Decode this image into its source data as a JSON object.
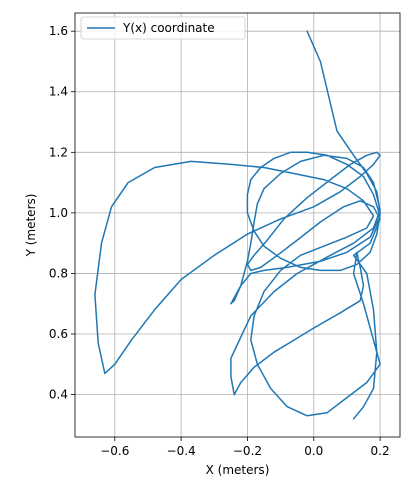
{
  "chart_data": {
    "type": "line",
    "xlabel": "X (meters)",
    "ylabel": "Y (meters)",
    "xlim": [
      -0.72,
      0.26
    ],
    "ylim": [
      0.26,
      1.66
    ],
    "grid": true,
    "legend_position": "top-left",
    "xticks": [
      -0.6,
      -0.4,
      -0.2,
      0.0,
      0.2
    ],
    "xtick_labels": [
      "−0.6",
      "−0.4",
      "−0.2",
      "0.0",
      "0.2"
    ],
    "yticks": [
      0.4,
      0.6,
      0.8,
      1.0,
      1.2,
      1.4,
      1.6
    ],
    "ytick_labels": [
      "0.4",
      "0.6",
      "0.8",
      "1.0",
      "1.2",
      "1.4",
      "1.6"
    ],
    "colors": {
      "line": "#1f77b4",
      "grid": "#b0b0b0"
    },
    "series": [
      {
        "name": "Y(x) coordinate",
        "x": [
          -0.02,
          0.02,
          0.07,
          0.12,
          0.16,
          0.19,
          0.2,
          0.19,
          0.17,
          0.13,
          0.08,
          0.02,
          -0.04,
          -0.1,
          -0.15,
          -0.18,
          -0.2,
          -0.2,
          -0.19,
          -0.16,
          -0.12,
          -0.07,
          -0.02,
          0.04,
          0.1,
          0.15,
          0.18,
          0.2,
          0.17,
          0.1,
          0.02,
          -0.08,
          -0.15,
          -0.19,
          -0.22,
          -0.25,
          -0.24,
          -0.22,
          -0.2,
          -0.19,
          -0.18,
          -0.17,
          -0.15,
          -0.1,
          -0.04,
          0.03,
          0.1,
          0.15,
          0.18,
          0.2,
          0.18,
          0.12,
          0.05,
          -0.05,
          -0.12,
          -0.19,
          -0.22,
          -0.25,
          -0.25,
          -0.24,
          -0.22,
          -0.18,
          -0.12,
          -0.06,
          0.0,
          0.08,
          0.14,
          0.15,
          0.14,
          0.13,
          0.12,
          0.15,
          0.18,
          0.2,
          0.16,
          0.1,
          0.04,
          -0.02,
          -0.08,
          -0.13,
          -0.17,
          -0.19,
          -0.18,
          -0.15,
          -0.1,
          -0.04,
          0.03,
          0.1,
          0.16,
          0.18,
          0.15,
          0.1,
          0.03,
          -0.06,
          -0.15,
          -0.25,
          -0.37,
          -0.48,
          -0.56,
          -0.61,
          -0.64,
          -0.66,
          -0.65,
          -0.63,
          -0.6,
          -0.55,
          -0.48,
          -0.4,
          -0.3,
          -0.2,
          -0.1,
          0.0,
          0.08,
          0.14,
          0.18,
          0.2,
          0.19,
          0.16,
          0.11,
          0.05,
          -0.02,
          -0.09,
          -0.14,
          -0.18,
          -0.2,
          -0.19,
          -0.16,
          -0.11,
          -0.05,
          0.02,
          0.09,
          0.14,
          0.18,
          0.2,
          0.17,
          0.12,
          0.16,
          0.18,
          0.19,
          0.18,
          0.15,
          0.12
        ],
        "y": [
          1.6,
          1.5,
          1.27,
          1.19,
          1.13,
          1.07,
          1.0,
          0.93,
          0.87,
          0.83,
          0.81,
          0.81,
          0.82,
          0.85,
          0.89,
          0.94,
          1.0,
          1.06,
          1.11,
          1.15,
          1.18,
          1.2,
          1.2,
          1.19,
          1.16,
          1.12,
          1.06,
          0.99,
          0.92,
          0.87,
          0.84,
          0.82,
          0.81,
          0.8,
          0.76,
          0.7,
          0.71,
          0.76,
          0.84,
          0.9,
          0.97,
          1.03,
          1.08,
          1.13,
          1.17,
          1.19,
          1.18,
          1.15,
          1.1,
          1.01,
          0.95,
          0.9,
          0.86,
          0.8,
          0.74,
          0.66,
          0.59,
          0.52,
          0.46,
          0.4,
          0.44,
          0.49,
          0.54,
          0.58,
          0.62,
          0.67,
          0.71,
          0.76,
          0.82,
          0.87,
          0.8,
          0.7,
          0.58,
          0.5,
          0.44,
          0.39,
          0.34,
          0.33,
          0.36,
          0.42,
          0.5,
          0.58,
          0.66,
          0.74,
          0.81,
          0.86,
          0.89,
          0.92,
          0.95,
          0.99,
          1.04,
          1.08,
          1.11,
          1.13,
          1.15,
          1.16,
          1.17,
          1.15,
          1.1,
          1.02,
          0.9,
          0.73,
          0.57,
          0.47,
          0.5,
          0.58,
          0.68,
          0.78,
          0.86,
          0.93,
          0.98,
          1.02,
          1.07,
          1.12,
          1.16,
          1.19,
          1.2,
          1.19,
          1.16,
          1.11,
          1.05,
          0.98,
          0.91,
          0.86,
          0.83,
          0.81,
          0.82,
          0.86,
          0.91,
          0.97,
          1.02,
          1.04,
          1.02,
          0.98,
          0.9,
          0.86,
          0.8,
          0.68,
          0.54,
          0.42,
          0.36,
          0.32
        ]
      }
    ]
  }
}
